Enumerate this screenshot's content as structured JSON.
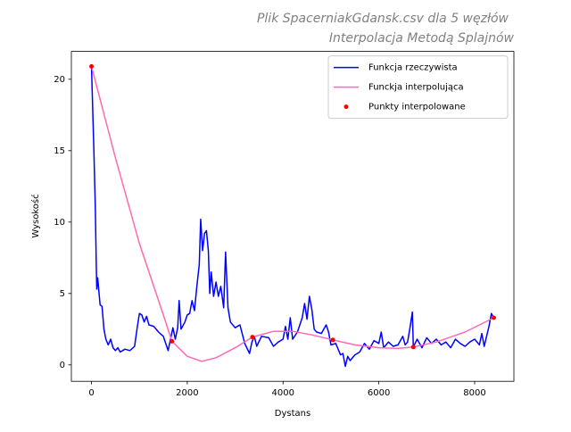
{
  "chart_data": {
    "type": "line",
    "title": "Plik SpacerniakGdansk.csv dla 5 węzłów",
    "subtitle": "Interpolacja Metodą Splajnów",
    "x_label": "Dystans",
    "y_label": "Wysokość",
    "xlim": [
      -420,
      8820
    ],
    "ylim": [
      -1.15,
      21.95
    ],
    "xticks": [
      0,
      2000,
      4000,
      6000,
      8000
    ],
    "yticks": [
      0,
      5,
      10,
      15,
      20
    ],
    "grid": false,
    "legend": "upper right",
    "series": [
      {
        "name": "Funkcja rzeczywista",
        "color": "#0000ff",
        "style": "line",
        "x": [
          0,
          50,
          80,
          100,
          110,
          130,
          150,
          180,
          220,
          260,
          300,
          350,
          400,
          450,
          500,
          550,
          600,
          700,
          800,
          900,
          950,
          1000,
          1050,
          1100,
          1150,
          1200,
          1300,
          1400,
          1500,
          1560,
          1600,
          1650,
          1700,
          1750,
          1800,
          1830,
          1870,
          1950,
          2000,
          2050,
          2100,
          2150,
          2200,
          2250,
          2280,
          2320,
          2360,
          2400,
          2440,
          2470,
          2500,
          2550,
          2600,
          2650,
          2700,
          2760,
          2800,
          2850,
          2900,
          3000,
          3100,
          3200,
          3300,
          3350,
          3400,
          3450,
          3550,
          3700,
          3800,
          3900,
          4000,
          4050,
          4100,
          4150,
          4200,
          4300,
          4400,
          4450,
          4500,
          4550,
          4600,
          4650,
          4700,
          4800,
          4900,
          4950,
          5000,
          5100,
          5200,
          5250,
          5300,
          5350,
          5400,
          5500,
          5600,
          5700,
          5800,
          5900,
          6000,
          6050,
          6100,
          6200,
          6300,
          6400,
          6500,
          6550,
          6600,
          6650,
          6700,
          6720,
          6800,
          6900,
          7000,
          7100,
          7200,
          7300,
          7400,
          7500,
          7600,
          7700,
          7800,
          7900,
          8000,
          8100,
          8150,
          8200,
          8300,
          8350,
          8400
        ],
        "values": [
          20.9,
          15,
          11,
          7,
          5.3,
          6.1,
          5.3,
          4.2,
          4.1,
          2.5,
          1.8,
          1.4,
          1.8,
          1.2,
          1.0,
          1.2,
          0.9,
          1.1,
          1.0,
          1.3,
          2.5,
          3.6,
          3.5,
          3.0,
          3.4,
          2.8,
          2.7,
          2.3,
          2.0,
          1.4,
          1.0,
          1.8,
          2.6,
          1.8,
          2.6,
          4.5,
          2.5,
          3.0,
          3.5,
          3.6,
          4.5,
          3.8,
          5.5,
          7.0,
          10.2,
          8.0,
          9.2,
          9.4,
          8.0,
          5.0,
          6.5,
          4.8,
          5.8,
          4.8,
          5.5,
          4.0,
          7.9,
          4.0,
          3.0,
          2.6,
          2.8,
          1.5,
          0.8,
          1.6,
          2.0,
          1.3,
          2.0,
          1.9,
          1.3,
          1.6,
          1.8,
          2.7,
          1.8,
          3.3,
          1.8,
          2.3,
          3.3,
          4.3,
          3.2,
          4.8,
          3.9,
          2.5,
          2.3,
          2.2,
          2.8,
          2.3,
          1.4,
          1.5,
          0.7,
          0.8,
          -0.1,
          0.6,
          0.3,
          0.7,
          0.9,
          1.5,
          1.1,
          1.7,
          1.5,
          2.3,
          1.2,
          1.6,
          1.3,
          1.4,
          2.0,
          1.4,
          1.6,
          2.6,
          3.7,
          1.25,
          1.8,
          1.2,
          1.9,
          1.5,
          1.8,
          1.4,
          1.6,
          1.2,
          1.8,
          1.5,
          1.3,
          1.6,
          1.8,
          1.4,
          2.2,
          1.3,
          2.7,
          3.6,
          3.3
        ]
      },
      {
        "name": "Funckja interpolująca",
        "color": "#ff69b4",
        "style": "line",
        "x": [
          0,
          500,
          1000,
          1500,
          1680,
          2000,
          2300,
          2600,
          3000,
          3360,
          3800,
          4200,
          4600,
          5040,
          5500,
          6000,
          6400,
          6720,
          7200,
          7800,
          8400
        ],
        "values": [
          20.9,
          14.5,
          8.5,
          3.5,
          1.65,
          0.6,
          0.25,
          0.5,
          1.2,
          1.95,
          2.35,
          2.35,
          2.1,
          1.75,
          1.4,
          1.2,
          1.15,
          1.25,
          1.6,
          2.3,
          3.3
        ]
      },
      {
        "name": "Punkty interpolowane",
        "color": "#ff0000",
        "style": "marker",
        "x": [
          0,
          1680,
          3360,
          5040,
          6720,
          8400
        ],
        "values": [
          20.9,
          1.65,
          1.95,
          1.75,
          1.25,
          3.3
        ]
      }
    ]
  }
}
